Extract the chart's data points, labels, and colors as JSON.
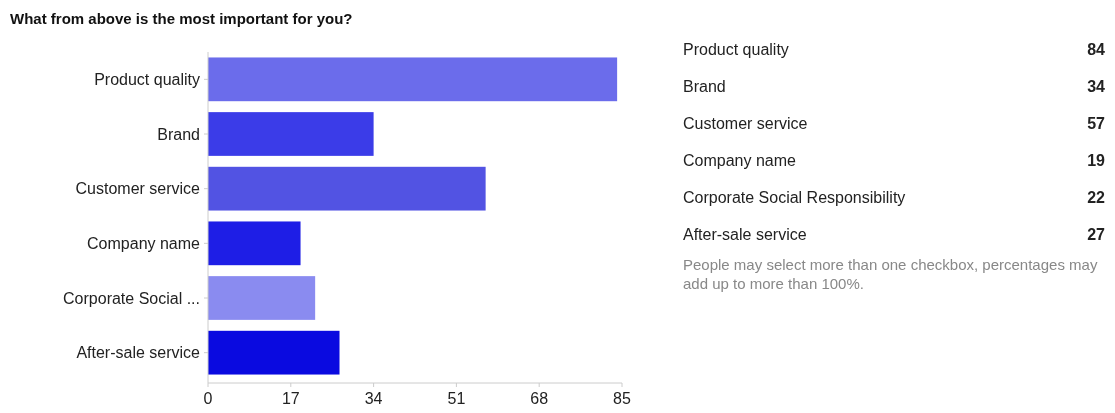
{
  "chart_data": [
    {
      "type": "bar",
      "orientation": "horizontal",
      "title": "What from above is the most important for you?",
      "categories": [
        "Product quality",
        "Brand",
        "Customer service",
        "Company name",
        "Corporate Social ...",
        "After-sale service"
      ],
      "values": [
        84,
        34,
        57,
        19,
        22,
        27
      ],
      "colors": [
        "#6b6ceb",
        "#3b3ce8",
        "#5253e3",
        "#1e1ee6",
        "#8a8bf0",
        "#0a0ae0"
      ],
      "xlim": [
        0,
        85
      ],
      "xticks": [
        0,
        17,
        34,
        51,
        68,
        85
      ],
      "grid": false
    },
    {
      "type": "other",
      "categories": [
        "Product quality",
        "Brand",
        "Customer service",
        "Company name",
        "Corporate Social Responsibility",
        "After-sale service"
      ],
      "values": [
        84,
        34,
        57,
        19,
        22,
        27
      ],
      "data_labels": true,
      "annotations": [
        "People may select more than one checkbox, percentages may add up to more than 100%."
      ]
    }
  ]
}
